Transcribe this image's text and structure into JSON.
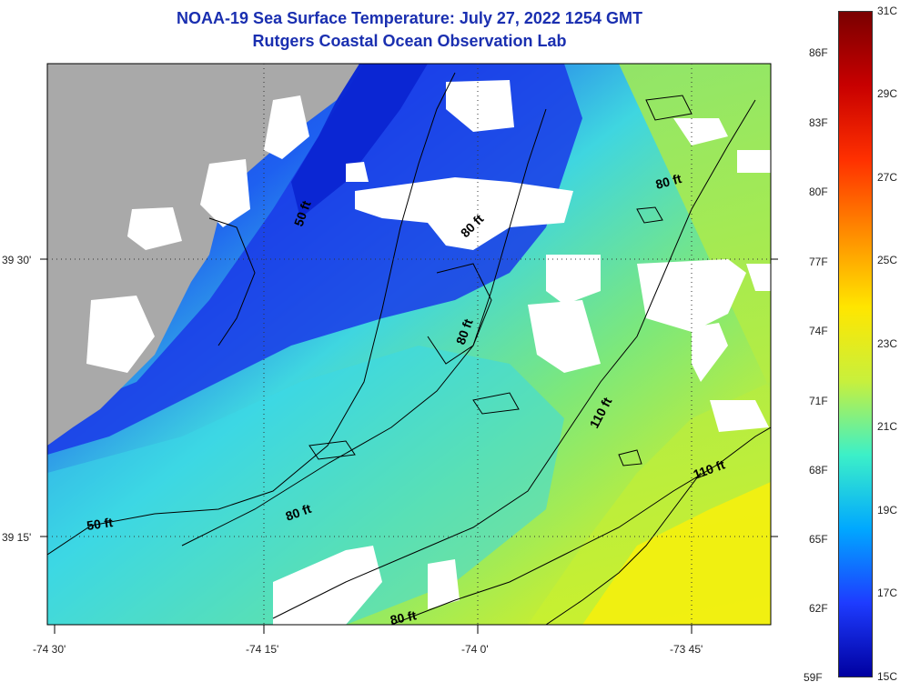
{
  "title": "NOAA-19 Sea Surface Temperature:  July 27, 2022 1254 GMT",
  "subtitle": "Rutgers Coastal Ocean Observation Lab",
  "x_ticks": [
    "-74 30'",
    "-74 15'",
    "-74 0'",
    "-73 45'"
  ],
  "y_ticks": [
    "39 30'",
    "39 15'"
  ],
  "depth_contours": [
    "50 ft",
    "50 ft",
    "80 ft",
    "80 ft",
    "80 ft",
    "80 ft",
    "80 ft",
    "110 ft",
    "110 ft"
  ],
  "colorbar": {
    "fahrenheit": [
      "86F",
      "83F",
      "80F",
      "77F",
      "74F",
      "71F",
      "68F",
      "65F",
      "62F",
      "59F"
    ],
    "celsius": [
      "31C",
      "29C",
      "27C",
      "25C",
      "23C",
      "21C",
      "19C",
      "17C",
      "15C"
    ],
    "colors": [
      "#7a0000",
      "#c80000",
      "#ff3000",
      "#ff8c00",
      "#ffe600",
      "#c8f03c",
      "#3cf0c8",
      "#00a8ff",
      "#1e3cff",
      "#0000a0"
    ]
  },
  "map_colors": {
    "land": "#a9a9a9",
    "cloud_mask": "#ffffff",
    "cold_water": "#1e40e8",
    "mid_water": "#3fd6e0",
    "warm_water": "#a8ec3c",
    "hot_water": "#f5ee10"
  }
}
